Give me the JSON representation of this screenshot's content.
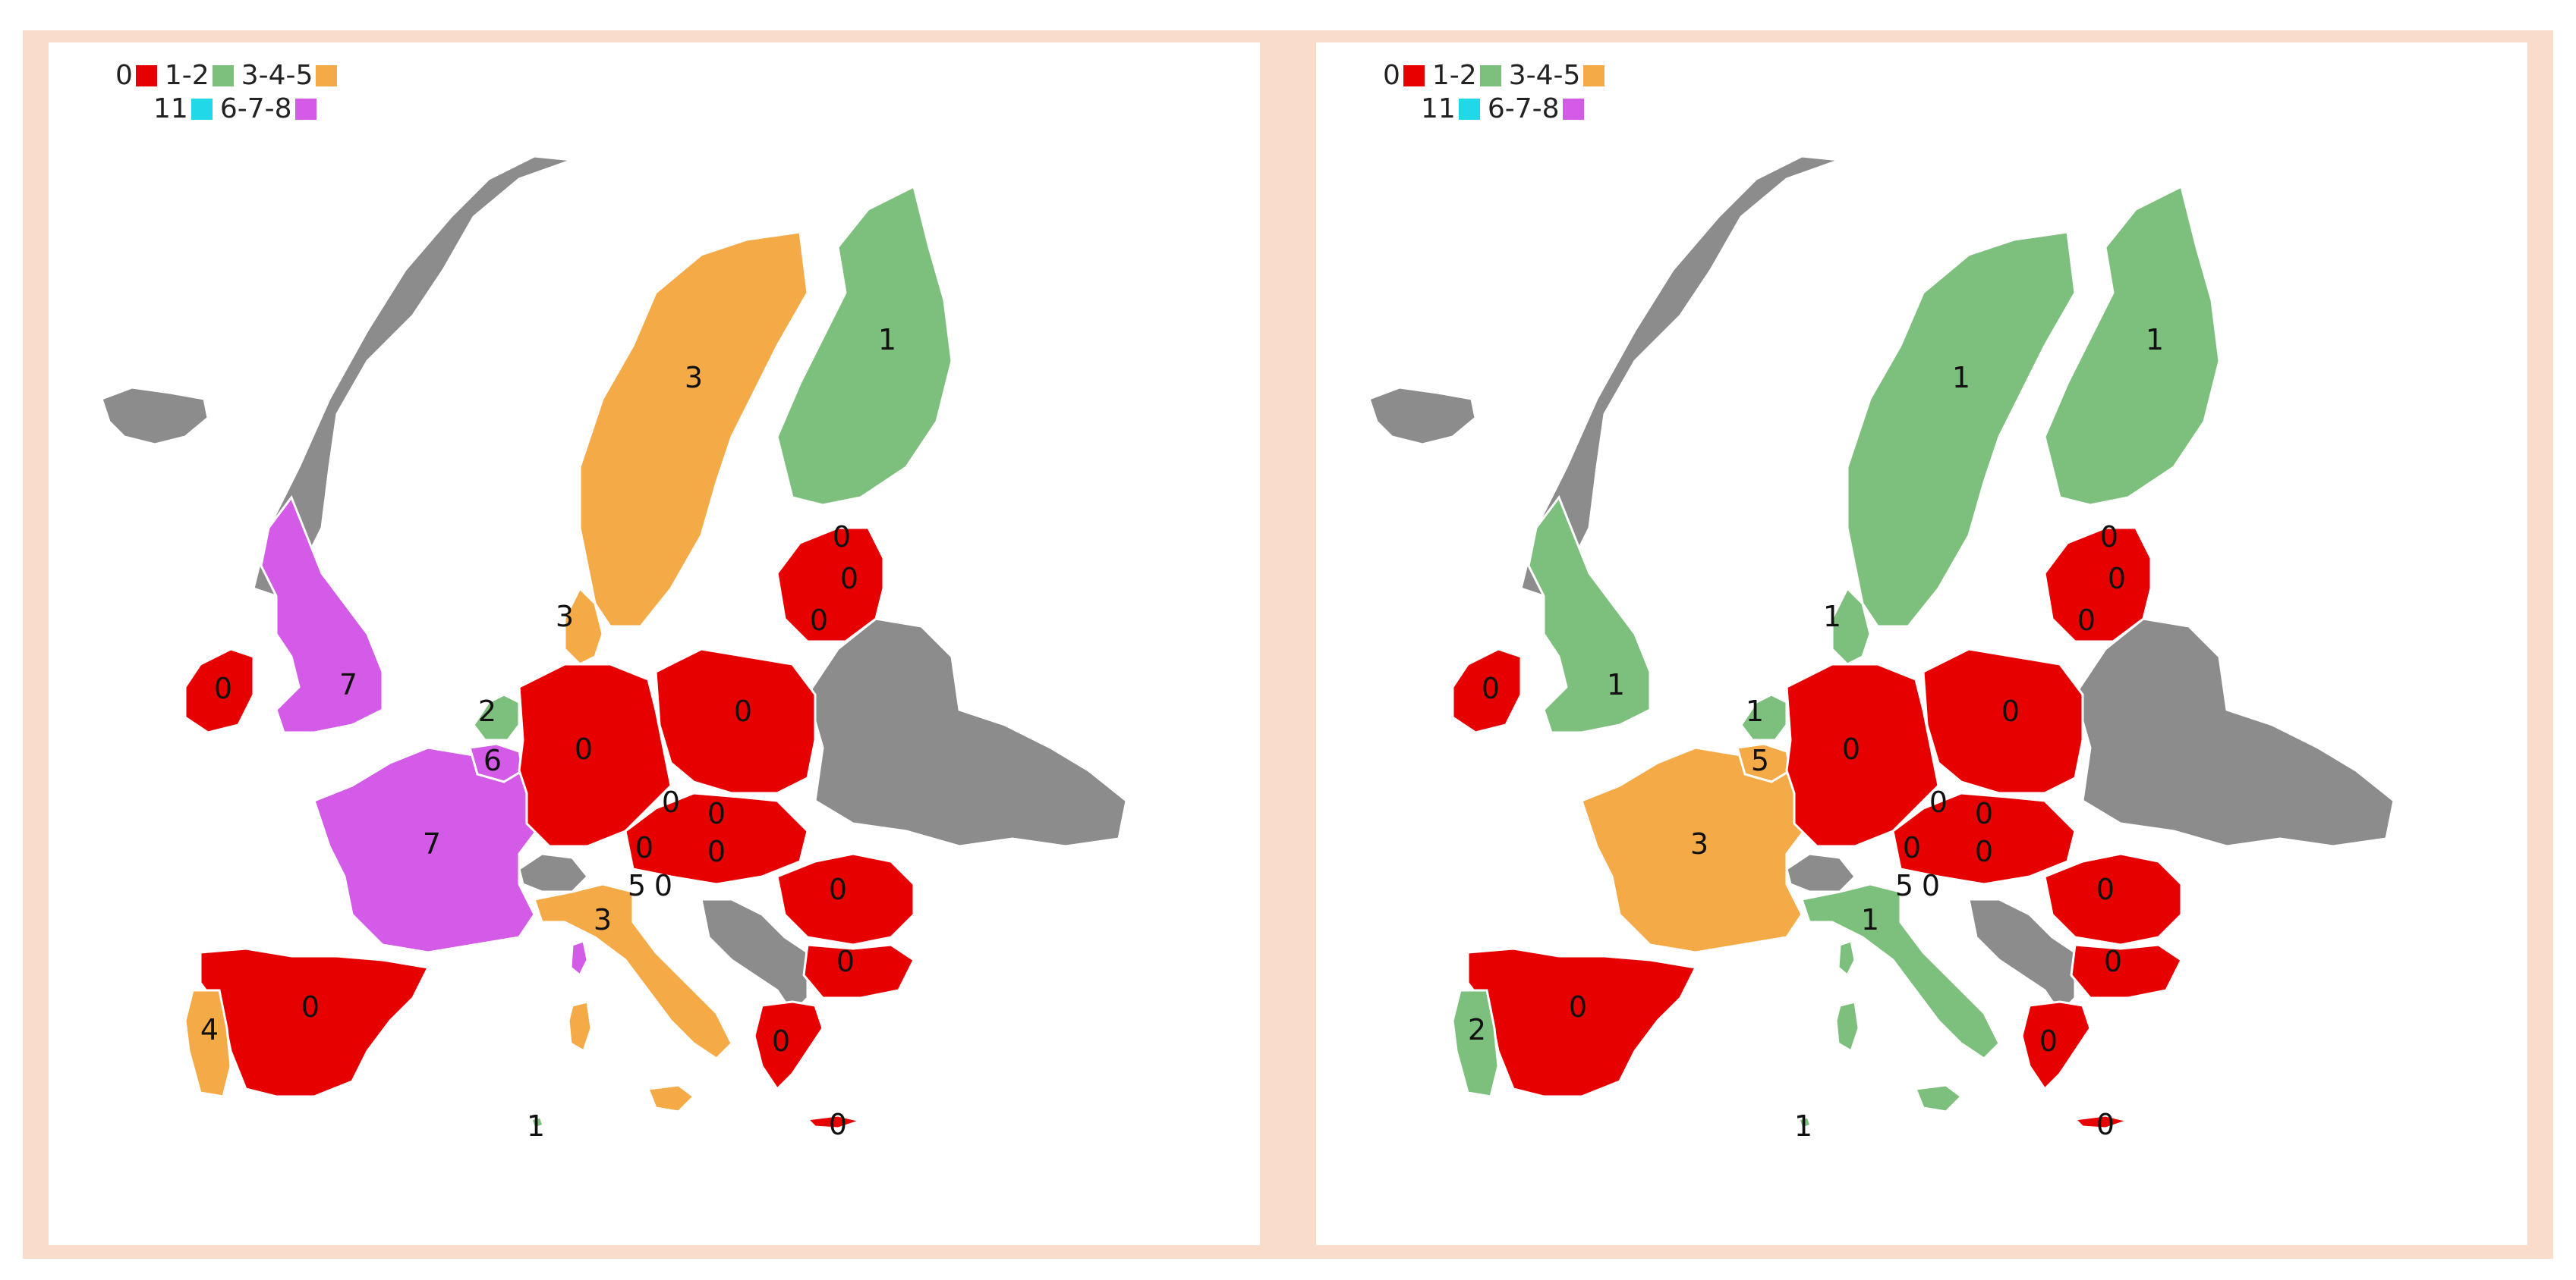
{
  "colors": {
    "red": "#e60000",
    "green": "#7dc07d",
    "orange": "#f5aa48",
    "cyan": "#20d8e8",
    "magenta": "#d45ae8",
    "grey": "#8c8c8c",
    "frame": "#f9dcc9"
  },
  "legend": {
    "zero": "0",
    "one_two": "1-2",
    "three_four_five": "3-4-5",
    "eleven": "11",
    "six_seven_eight": "6-7-8"
  },
  "maps": [
    {
      "fills": {
        "sweden": "orange",
        "finland": "green",
        "norway": "grey",
        "iceland": "grey",
        "uk": "magenta",
        "ireland": "red",
        "france": "magenta",
        "spain": "red",
        "portugal": "orange",
        "italy": "orange",
        "denmark": "orange",
        "netherlands": "green",
        "belgium": "magenta",
        "germany": "red",
        "poland": "red",
        "central": "red",
        "baltics": "red",
        "romania": "red",
        "bulgaria": "red",
        "greece": "red",
        "eastern": "grey",
        "balkans": "grey",
        "switzerland": "grey",
        "corsica": "magenta",
        "sardinia": "orange",
        "sicily": "orange",
        "cyprus": "red",
        "malta": "green"
      },
      "labels": {
        "sweden": "3",
        "finland": "1",
        "denmark": "3",
        "uk": "7",
        "ireland": "0",
        "netherlands": "2",
        "belgium": "6",
        "france": "7",
        "germany": "0",
        "poland": "0",
        "latvia": "0",
        "lithuania": "0",
        "estonia": "0",
        "czech": "0",
        "austria": "0",
        "slovakia": "0",
        "hungary": "0",
        "slovenia": "5",
        "croatia": "0",
        "romania": "0",
        "bulgaria": "0",
        "greece": "0",
        "italy": "3",
        "spain": "0",
        "portugal": "4",
        "malta": "1",
        "cyprus": "0"
      }
    },
    {
      "fills": {
        "sweden": "green",
        "finland": "green",
        "norway": "grey",
        "iceland": "grey",
        "uk": "green",
        "ireland": "red",
        "france": "orange",
        "spain": "red",
        "portugal": "green",
        "italy": "green",
        "denmark": "green",
        "netherlands": "green",
        "belgium": "orange",
        "germany": "red",
        "poland": "red",
        "central": "red",
        "baltics": "red",
        "romania": "red",
        "bulgaria": "red",
        "greece": "red",
        "eastern": "grey",
        "balkans": "grey",
        "switzerland": "grey",
        "corsica": "green",
        "sardinia": "green",
        "sicily": "green",
        "cyprus": "red",
        "malta": "green"
      },
      "labels": {
        "sweden": "1",
        "finland": "1",
        "denmark": "1",
        "uk": "1",
        "ireland": "0",
        "netherlands": "1",
        "belgium": "5",
        "france": "3",
        "germany": "0",
        "poland": "0",
        "latvia": "0",
        "lithuania": "0",
        "estonia": "0",
        "czech": "0",
        "austria": "0",
        "slovakia": "0",
        "hungary": "0",
        "slovenia": "5",
        "croatia": "0",
        "romania": "0",
        "bulgaria": "0",
        "greece": "0",
        "italy": "1",
        "spain": "0",
        "portugal": "2",
        "malta": "1",
        "cyprus": "0"
      }
    }
  ]
}
